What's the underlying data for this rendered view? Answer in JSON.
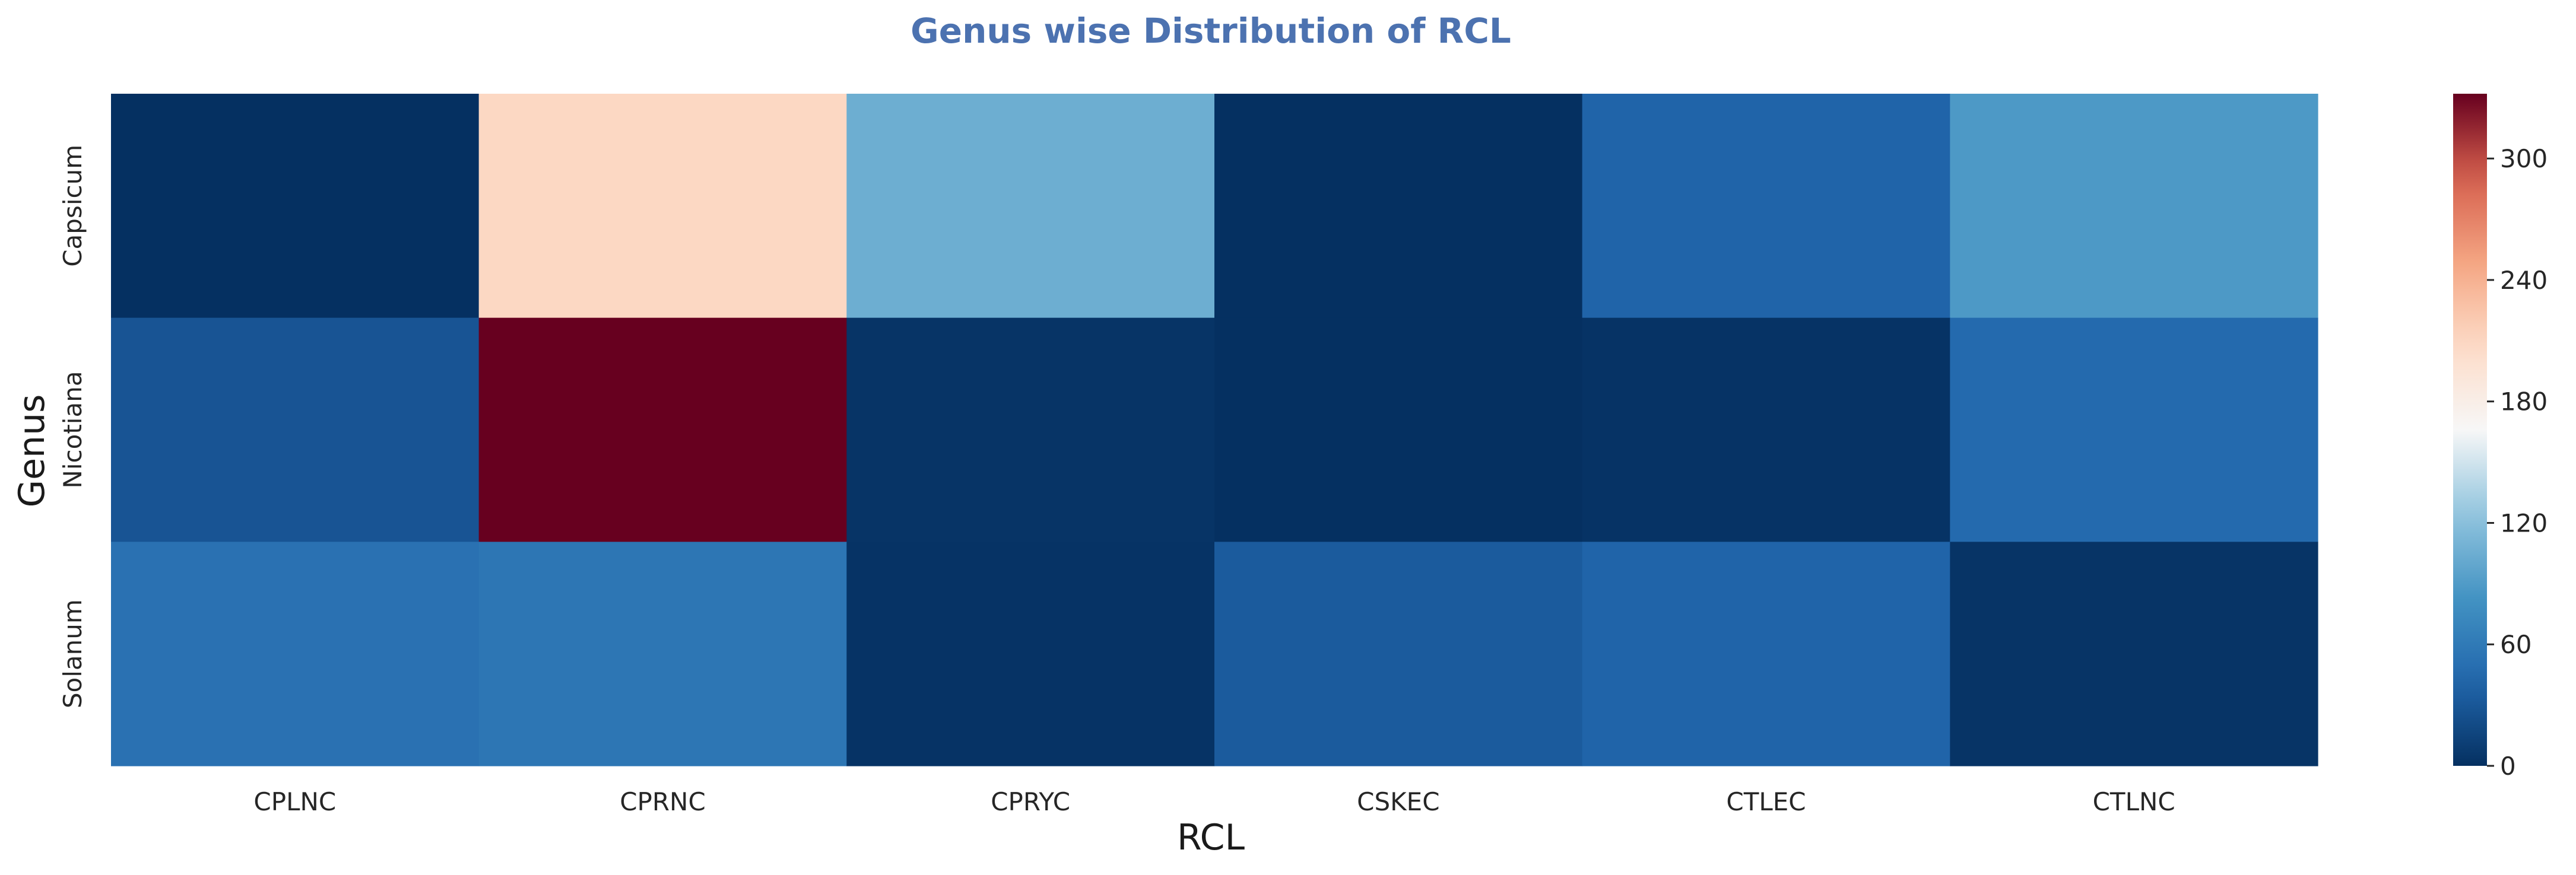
{
  "chart_data": {
    "type": "heatmap",
    "title": "Genus wise Distribution of RCL",
    "xlabel": "RCL",
    "ylabel": "Genus",
    "x_categories": [
      "CPLNC",
      "CPRNC",
      "CPRYC",
      "CSKEC",
      "CTLEC",
      "CTLNC"
    ],
    "y_categories": [
      "Capsicum",
      "Nicotiana",
      "Solanum"
    ],
    "values": [
      [
        0,
        210,
        105,
        0,
        40,
        88
      ],
      [
        28,
        332,
        3,
        0,
        2,
        45
      ],
      [
        52,
        56,
        2,
        33,
        40,
        3
      ]
    ],
    "color_range": [
      0,
      332
    ],
    "colormap": "RdBu_r",
    "colorbar_ticks": [
      0,
      60,
      120,
      180,
      240,
      300
    ],
    "grid": false
  },
  "colors": {
    "title": "#4c72b0",
    "text": "#262626"
  }
}
